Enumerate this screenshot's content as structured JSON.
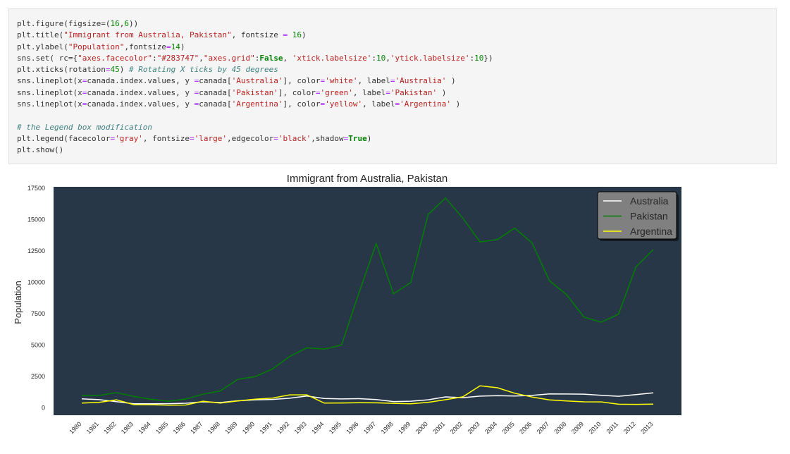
{
  "code_cell": {
    "lines": [
      [
        {
          "t": "plt.figure(figsize=("
        },
        {
          "t": "16",
          "c": "num"
        },
        {
          "t": ","
        },
        {
          "t": "6",
          "c": "num"
        },
        {
          "t": "))"
        }
      ],
      [
        {
          "t": "plt.title("
        },
        {
          "t": "\"Immigrant from Australia, Pakistan\"",
          "c": "str"
        },
        {
          "t": ", fontsize "
        },
        {
          "t": "=",
          "c": "op"
        },
        {
          "t": " "
        },
        {
          "t": "16",
          "c": "num"
        },
        {
          "t": ")"
        }
      ],
      [
        {
          "t": "plt.ylabel("
        },
        {
          "t": "\"Population\"",
          "c": "str"
        },
        {
          "t": ",fontsize"
        },
        {
          "t": "=",
          "c": "op"
        },
        {
          "t": "14",
          "c": "num"
        },
        {
          "t": ")"
        }
      ],
      [
        {
          "t": "sns.set( rc={"
        },
        {
          "t": "\"axes.facecolor\"",
          "c": "str"
        },
        {
          "t": ":"
        },
        {
          "t": "\"#283747\"",
          "c": "str"
        },
        {
          "t": ","
        },
        {
          "t": "\"axes.grid\"",
          "c": "str"
        },
        {
          "t": ":"
        },
        {
          "t": "False",
          "c": "kw"
        },
        {
          "t": ", "
        },
        {
          "t": "'xtick.labelsize'",
          "c": "str"
        },
        {
          "t": ":"
        },
        {
          "t": "10",
          "c": "num"
        },
        {
          "t": ","
        },
        {
          "t": "'ytick.labelsize'",
          "c": "str"
        },
        {
          "t": ":"
        },
        {
          "t": "10",
          "c": "num"
        },
        {
          "t": "})"
        }
      ],
      [
        {
          "t": "plt.xticks(rotation"
        },
        {
          "t": "=",
          "c": "op"
        },
        {
          "t": "45",
          "c": "num"
        },
        {
          "t": ") "
        },
        {
          "t": "# Rotating X ticks by 45 degrees",
          "c": "cm"
        }
      ],
      [
        {
          "t": "sns.lineplot(x"
        },
        {
          "t": "=",
          "c": "op"
        },
        {
          "t": "canada.index.values, y "
        },
        {
          "t": "=",
          "c": "op"
        },
        {
          "t": "canada["
        },
        {
          "t": "'Australia'",
          "c": "str"
        },
        {
          "t": "], color"
        },
        {
          "t": "=",
          "c": "op"
        },
        {
          "t": "'white'",
          "c": "str"
        },
        {
          "t": ", label"
        },
        {
          "t": "=",
          "c": "op"
        },
        {
          "t": "'Australia'",
          "c": "str"
        },
        {
          "t": " )"
        }
      ],
      [
        {
          "t": "sns.lineplot(x"
        },
        {
          "t": "=",
          "c": "op"
        },
        {
          "t": "canada.index.values, y "
        },
        {
          "t": "=",
          "c": "op"
        },
        {
          "t": "canada["
        },
        {
          "t": "'Pakistan'",
          "c": "str"
        },
        {
          "t": "], color"
        },
        {
          "t": "=",
          "c": "op"
        },
        {
          "t": "'green'",
          "c": "str"
        },
        {
          "t": ", label"
        },
        {
          "t": "=",
          "c": "op"
        },
        {
          "t": "'Pakistan'",
          "c": "str"
        },
        {
          "t": " )"
        }
      ],
      [
        {
          "t": "sns.lineplot(x"
        },
        {
          "t": "=",
          "c": "op"
        },
        {
          "t": "canada.index.values, y "
        },
        {
          "t": "=",
          "c": "op"
        },
        {
          "t": "canada["
        },
        {
          "t": "'Argentina'",
          "c": "str"
        },
        {
          "t": "], color"
        },
        {
          "t": "=",
          "c": "op"
        },
        {
          "t": "'yellow'",
          "c": "str"
        },
        {
          "t": ", label"
        },
        {
          "t": "=",
          "c": "op"
        },
        {
          "t": "'Argentina'",
          "c": "str"
        },
        {
          "t": " )"
        }
      ],
      [],
      [
        {
          "t": "# the Legend box modification",
          "c": "cm"
        }
      ],
      [
        {
          "t": "plt.legend(facecolor"
        },
        {
          "t": "=",
          "c": "op"
        },
        {
          "t": "'gray'",
          "c": "str"
        },
        {
          "t": ", fontsize"
        },
        {
          "t": "=",
          "c": "op"
        },
        {
          "t": "'large'",
          "c": "str"
        },
        {
          "t": ",edgecolor"
        },
        {
          "t": "=",
          "c": "op"
        },
        {
          "t": "'black'",
          "c": "str"
        },
        {
          "t": ",shadow"
        },
        {
          "t": "=",
          "c": "op"
        },
        {
          "t": "True",
          "c": "kw"
        },
        {
          "t": ")"
        }
      ],
      [
        {
          "t": "plt.show()"
        }
      ]
    ]
  },
  "chart_data": {
    "type": "line",
    "title": "Immigrant from Australia, Pakistan",
    "xlabel": "",
    "ylabel": "Population",
    "x": [
      1980,
      1981,
      1982,
      1983,
      1984,
      1985,
      1986,
      1987,
      1988,
      1989,
      1990,
      1991,
      1992,
      1993,
      1994,
      1995,
      1996,
      1997,
      1998,
      1999,
      2000,
      2001,
      2002,
      2003,
      2004,
      2005,
      2006,
      2007,
      2008,
      2009,
      2010,
      2011,
      2012,
      2013
    ],
    "ylim": [
      -600,
      17600
    ],
    "yticks": [
      0,
      2500,
      5000,
      7500,
      10000,
      12500,
      15000,
      17500
    ],
    "x_tick_rotation": 45,
    "grid": false,
    "background": "#283747",
    "legend_location": "top-right",
    "legend_facecolor": "#808080",
    "series": [
      {
        "name": "Australia",
        "color": "#ffffff",
        "values": [
          702,
          639,
          484,
          317,
          317,
          319,
          356,
          467,
          410,
          553,
          620,
          660,
          754,
          929,
          738,
          700,
          722,
          646,
          490,
          520,
          630,
          860,
          800,
          920,
          960,
          930,
          980,
          1100,
          1090,
          1080,
          990,
          910,
          1040,
          1180
        ]
      },
      {
        "name": "Pakistan",
        "color": "#008000",
        "values": [
          978,
          972,
          1201,
          900,
          668,
          514,
          691,
          1072,
          1334,
          2261,
          2470,
          3079,
          4071,
          4777,
          4666,
          4994,
          9125,
          13073,
          9068,
          9979,
          15400,
          16708,
          15110,
          13205,
          13399,
          14314,
          13127,
          10124,
          8994,
          7217,
          6811,
          7468,
          11227,
          12603
        ]
      },
      {
        "name": "Argentina",
        "color": "#ffff00",
        "values": [
          368,
          426,
          626,
          241,
          237,
          196,
          213,
          519,
          374,
          538,
          678,
          763,
          1023,
          1022,
          366,
          380,
          396,
          391,
          349,
          318,
          427,
          635,
          867,
          1745,
          1591,
          1153,
          847,
          620,
          540,
          467,
          459,
          278,
          263,
          282
        ]
      }
    ]
  }
}
